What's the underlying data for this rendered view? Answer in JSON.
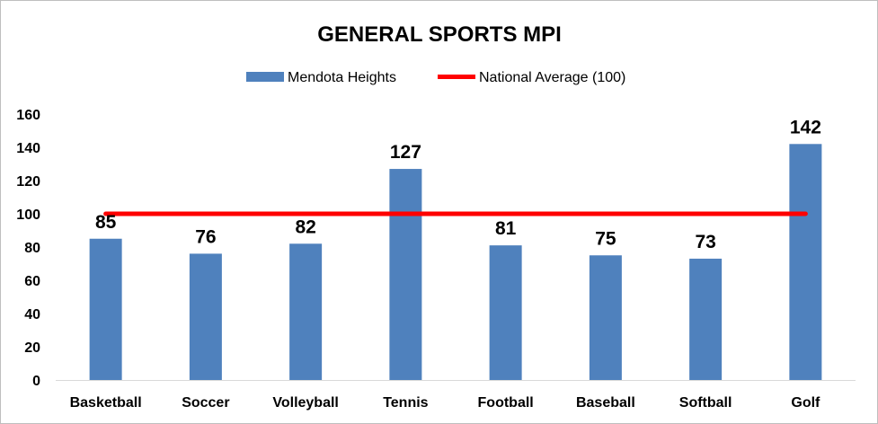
{
  "chart_data": {
    "type": "bar",
    "title": "GENERAL SPORTS MPI",
    "xlabel": "",
    "ylabel": "",
    "ylim": [
      0,
      160
    ],
    "yticks": [
      0,
      20,
      40,
      60,
      80,
      100,
      120,
      140,
      160
    ],
    "grid": false,
    "legend_position": "top",
    "categories": [
      "Basketball",
      "Soccer",
      "Volleyball",
      "Tennis",
      "Football",
      "Baseball",
      "Softball",
      "Golf"
    ],
    "series": [
      {
        "name": "Mendota Heights",
        "type": "bar",
        "color": "#4f81bd",
        "values": [
          85,
          76,
          82,
          127,
          81,
          75,
          73,
          142
        ]
      },
      {
        "name": "National Average (100)",
        "type": "line",
        "color": "#ff0000",
        "values": [
          100,
          100,
          100,
          100,
          100,
          100,
          100,
          100
        ]
      }
    ]
  }
}
